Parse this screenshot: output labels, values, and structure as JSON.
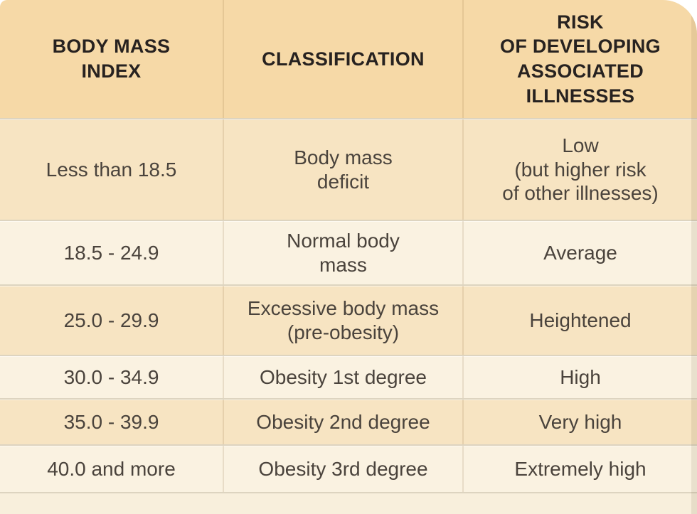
{
  "table": {
    "header": {
      "bmi": "BODY MASS\nINDEX",
      "classification": "CLASSIFICATION",
      "risk": "RISK\nOF DEVELOPING\nASSOCIATED\nILLNESSES"
    },
    "rows": [
      {
        "bmi": "Less than 18.5",
        "classification": "Body mass\ndeficit",
        "risk": "Low\n(but higher risk\nof other illnesses)"
      },
      {
        "bmi": "18.5 - 24.9",
        "classification": "Normal body\nmass",
        "risk": "Average"
      },
      {
        "bmi": "25.0 - 29.9",
        "classification": "Excessive body mass\n(pre-obesity)",
        "risk": "Heightened"
      },
      {
        "bmi": "30.0 - 34.9",
        "classification": "Obesity 1st degree",
        "risk": "High"
      },
      {
        "bmi": "35.0 - 39.9",
        "classification": "Obesity 2nd degree",
        "risk": "Very high"
      },
      {
        "bmi": "40.0 and more",
        "classification": "Obesity 3rd degree",
        "risk": "Extremely high"
      }
    ]
  },
  "chart_data": {
    "type": "table",
    "title": "Body mass index classification table",
    "columns": [
      "BODY MASS INDEX",
      "CLASSIFICATION",
      "RISK OF DEVELOPING ASSOCIATED ILLNESSES"
    ],
    "rows": [
      [
        "Less than 18.5",
        "Body mass deficit",
        "Low (but higher risk of other illnesses)"
      ],
      [
        "18.5 - 24.9",
        "Normal body mass",
        "Average"
      ],
      [
        "25.0 - 29.9",
        "Excessive body mass (pre-obesity)",
        "Heightened"
      ],
      [
        "30.0 - 34.9",
        "Obesity 1st degree",
        "High"
      ],
      [
        "35.0 - 39.9",
        "Obesity 2nd degree",
        "Very high"
      ],
      [
        "40.0 and more",
        "Obesity 3rd degree",
        "Extremely high"
      ]
    ]
  },
  "colors": {
    "page_bg": "#ffffff",
    "header_bg": "#f6d9a7",
    "row_odd_bg": "#f7e4c2",
    "row_even_bg": "#faf2e1",
    "footer_bg": "#f8efdc",
    "divider": "#ddd4c0",
    "header_text": "#272220",
    "body_text": "#4a433c"
  }
}
